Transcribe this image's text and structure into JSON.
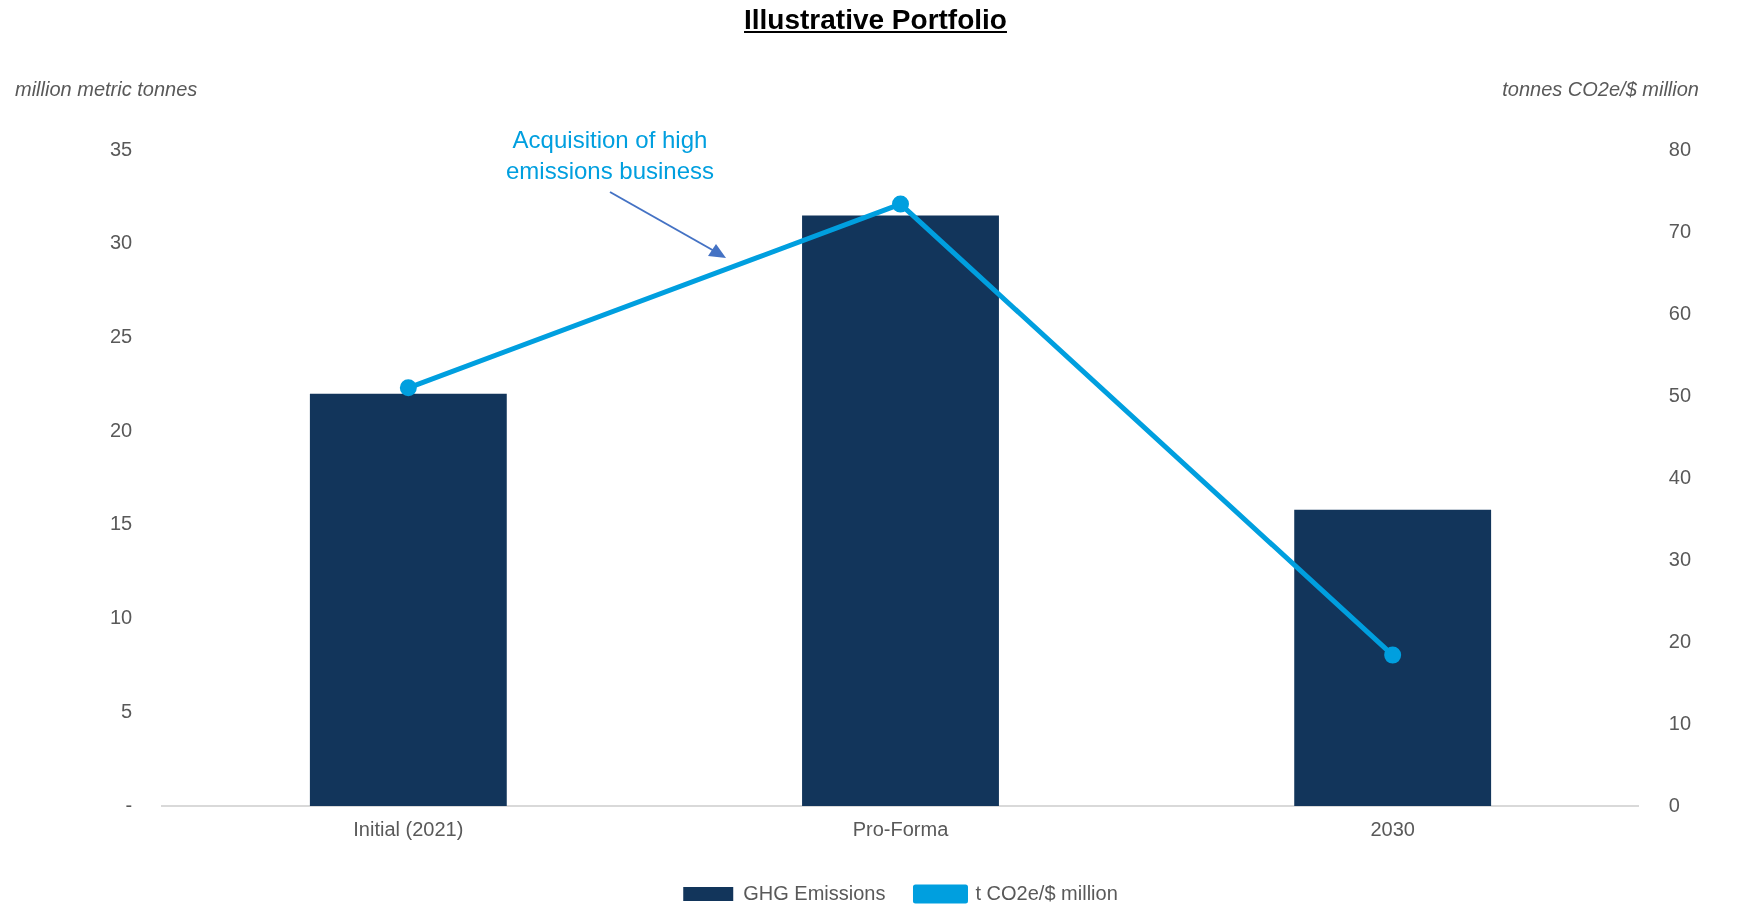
{
  "chart_data": {
    "type": "bar",
    "title": "Illustrative Portfolio",
    "ylabel": "million metric tonnes",
    "y2label": "tonnes CO2e/$ million",
    "categories": [
      "Initial (2021)",
      "Pro-Forma",
      "2030"
    ],
    "series": [
      {
        "name": "GHG Emissions",
        "color": "#12355b",
        "values": [
          22,
          31.5,
          15.8
        ]
      },
      {
        "name": "t CO2e/$ million",
        "type": "line",
        "axis": "y2",
        "color": "#009fdf",
        "values": [
          51,
          73.4,
          18.4
        ]
      }
    ],
    "ylim": [
      0,
      35
    ],
    "yticks": [
      {
        "value": 0,
        "label": "-"
      },
      5,
      10,
      15,
      20,
      25,
      30,
      35
    ],
    "y2lim": [
      0,
      80
    ],
    "y2ticks": [
      0,
      10,
      20,
      30,
      40,
      50,
      60,
      70,
      80
    ],
    "annotations": [
      "Acquisition of high emissions business"
    ],
    "grid": false,
    "legend": "bottom",
    "marker": "circle",
    "line_style": "solid"
  }
}
